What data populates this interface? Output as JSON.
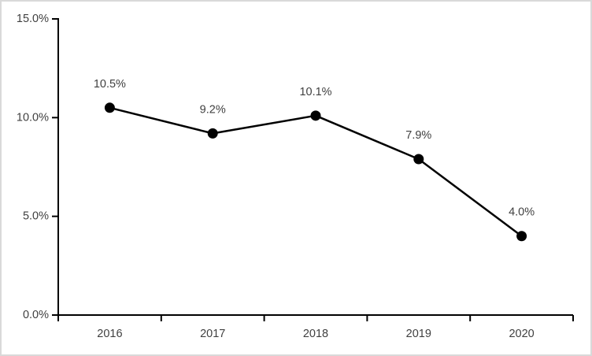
{
  "chart_data": {
    "type": "line",
    "title": "",
    "xlabel": "",
    "ylabel": "",
    "categories": [
      "2016",
      "2017",
      "2018",
      "2019",
      "2020"
    ],
    "values": [
      10.5,
      9.2,
      10.1,
      7.9,
      4.0
    ],
    "data_labels": [
      "10.5%",
      "9.2%",
      "10.1%",
      "7.9%",
      "4.0%"
    ],
    "y_ticks": [
      {
        "value": 0,
        "label": "0.0%"
      },
      {
        "value": 5,
        "label": "5.0%"
      },
      {
        "value": 10,
        "label": "10.0%"
      },
      {
        "value": 15,
        "label": "15.0%"
      }
    ],
    "ylim": [
      0,
      15
    ],
    "grid": false,
    "legend": "none",
    "colors": {
      "line": "#000000",
      "marker": "#000000",
      "axis": "#000000",
      "tick_label": "#404040",
      "data_label": "#404040",
      "frame_border": "#d9d9d9",
      "background": "#ffffff"
    }
  }
}
